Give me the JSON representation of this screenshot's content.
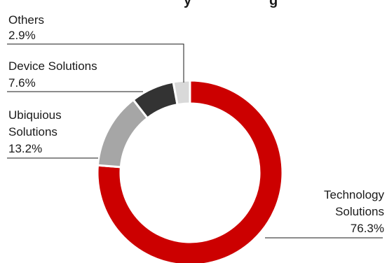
{
  "chart_data": {
    "type": "pie",
    "variant": "donut",
    "title": "",
    "title_fragment_visible": "y",
    "title_fragment_visible_2": "g",
    "categories": [
      "Technology Solutions",
      "Ubiquious Solutions",
      "Device Solutions",
      "Others"
    ],
    "values": [
      76.3,
      13.2,
      7.6,
      2.9
    ],
    "unit": "%",
    "slices": [
      {
        "name": "Technology Solutions",
        "label_lines": [
          "Technology",
          "Solutions"
        ],
        "value": 76.3,
        "value_label": "76.3%",
        "color": "#cc0000"
      },
      {
        "name": "Ubiquious Solutions",
        "label_lines": [
          "Ubiquious",
          "Solutions"
        ],
        "value": 13.2,
        "value_label": "13.2%",
        "color": "#a6a6a6"
      },
      {
        "name": "Device Solutions",
        "label_lines": [
          "Device Solutions"
        ],
        "value": 7.6,
        "value_label": "7.6%",
        "color": "#333333"
      },
      {
        "name": "Others",
        "label_lines": [
          "Others"
        ],
        "value": 2.9,
        "value_label": "2.9%",
        "color": "#d9d9d9"
      }
    ],
    "start": "top, clockwise",
    "legend": "none"
  }
}
